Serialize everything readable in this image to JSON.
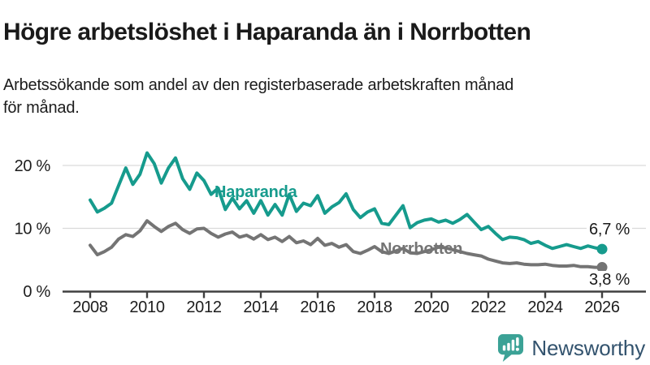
{
  "header": {
    "title": "Högre arbetslöshet i Haparanda än i Norrbotten",
    "subtitle_line1": "Arbetssökande som andel av den registerbaserade arbetskraften månad",
    "subtitle_line2": "för månad."
  },
  "chart_data": {
    "type": "line",
    "title": "Högre arbetslöshet i Haparanda än i Norrbotten",
    "xlabel": "",
    "ylabel": "",
    "xlim": [
      2008,
      2026.6
    ],
    "ylim": [
      0,
      23
    ],
    "grid": true,
    "legend_position": "inline-labels-on-lines",
    "x_unit": "year",
    "x_start": 2008.0,
    "x_step": 0.25,
    "x_ticks": [
      2008,
      2010,
      2012,
      2014,
      2016,
      2018,
      2020,
      2022,
      2024,
      2026
    ],
    "y_ticks": [
      {
        "value": 0,
        "label": "0 %"
      },
      {
        "value": 10,
        "label": "10 %"
      },
      {
        "value": 20,
        "label": "20 %"
      }
    ],
    "series": [
      {
        "name": "Haparanda",
        "color": "#169b8d",
        "end_label": "6,7 %",
        "end_value": 6.7,
        "values": [
          14.5,
          12.6,
          13.2,
          14.0,
          16.8,
          19.6,
          17.0,
          18.6,
          22.0,
          20.3,
          17.2,
          19.6,
          21.2,
          17.9,
          16.2,
          18.8,
          17.6,
          15.4,
          16.4,
          13.0,
          14.8,
          13.1,
          14.4,
          12.4,
          14.4,
          12.1,
          13.8,
          12.1,
          15.4,
          12.7,
          14.0,
          13.6,
          15.2,
          12.4,
          13.4,
          14.1,
          15.5,
          13.0,
          11.7,
          12.6,
          13.1,
          10.8,
          10.6,
          12.1,
          13.6,
          10.1,
          10.9,
          11.3,
          11.5,
          11.0,
          11.3,
          10.8,
          11.4,
          12.2,
          11.0,
          9.8,
          10.3,
          9.2,
          8.2,
          8.6,
          8.5,
          8.2,
          7.6,
          7.9,
          7.3,
          6.8,
          7.1,
          7.4,
          7.1,
          6.8,
          7.2,
          6.9,
          6.7
        ]
      },
      {
        "name": "Norrbotten",
        "color": "#747474",
        "end_label": "3,8 %",
        "end_value": 3.8,
        "values": [
          7.3,
          5.8,
          6.3,
          7.0,
          8.3,
          9.0,
          8.7,
          9.6,
          11.2,
          10.3,
          9.5,
          10.3,
          10.8,
          9.8,
          9.2,
          9.9,
          10.0,
          9.2,
          8.6,
          9.1,
          9.4,
          8.6,
          8.9,
          8.3,
          9.0,
          8.2,
          8.6,
          7.9,
          8.7,
          7.7,
          8.0,
          7.4,
          8.4,
          7.3,
          7.6,
          7.0,
          7.4,
          6.3,
          6.0,
          6.5,
          7.1,
          6.3,
          6.0,
          6.4,
          6.8,
          6.1,
          6.0,
          6.3,
          6.6,
          7.0,
          6.9,
          6.6,
          6.3,
          6.0,
          5.8,
          5.6,
          5.1,
          4.8,
          4.5,
          4.4,
          4.5,
          4.3,
          4.2,
          4.2,
          4.3,
          4.1,
          4.0,
          4.0,
          4.1,
          3.9,
          3.9,
          3.8,
          3.8
        ]
      }
    ]
  },
  "footer": {
    "brand": "Newsworthy",
    "logo_color": "#3ba296",
    "text_color": "#33536e"
  },
  "colors": {
    "haparanda": "#169b8d",
    "norrbotten": "#747474",
    "gridline": "#d9d9d9",
    "axis": "#404040",
    "text": "#1a1a1a"
  }
}
